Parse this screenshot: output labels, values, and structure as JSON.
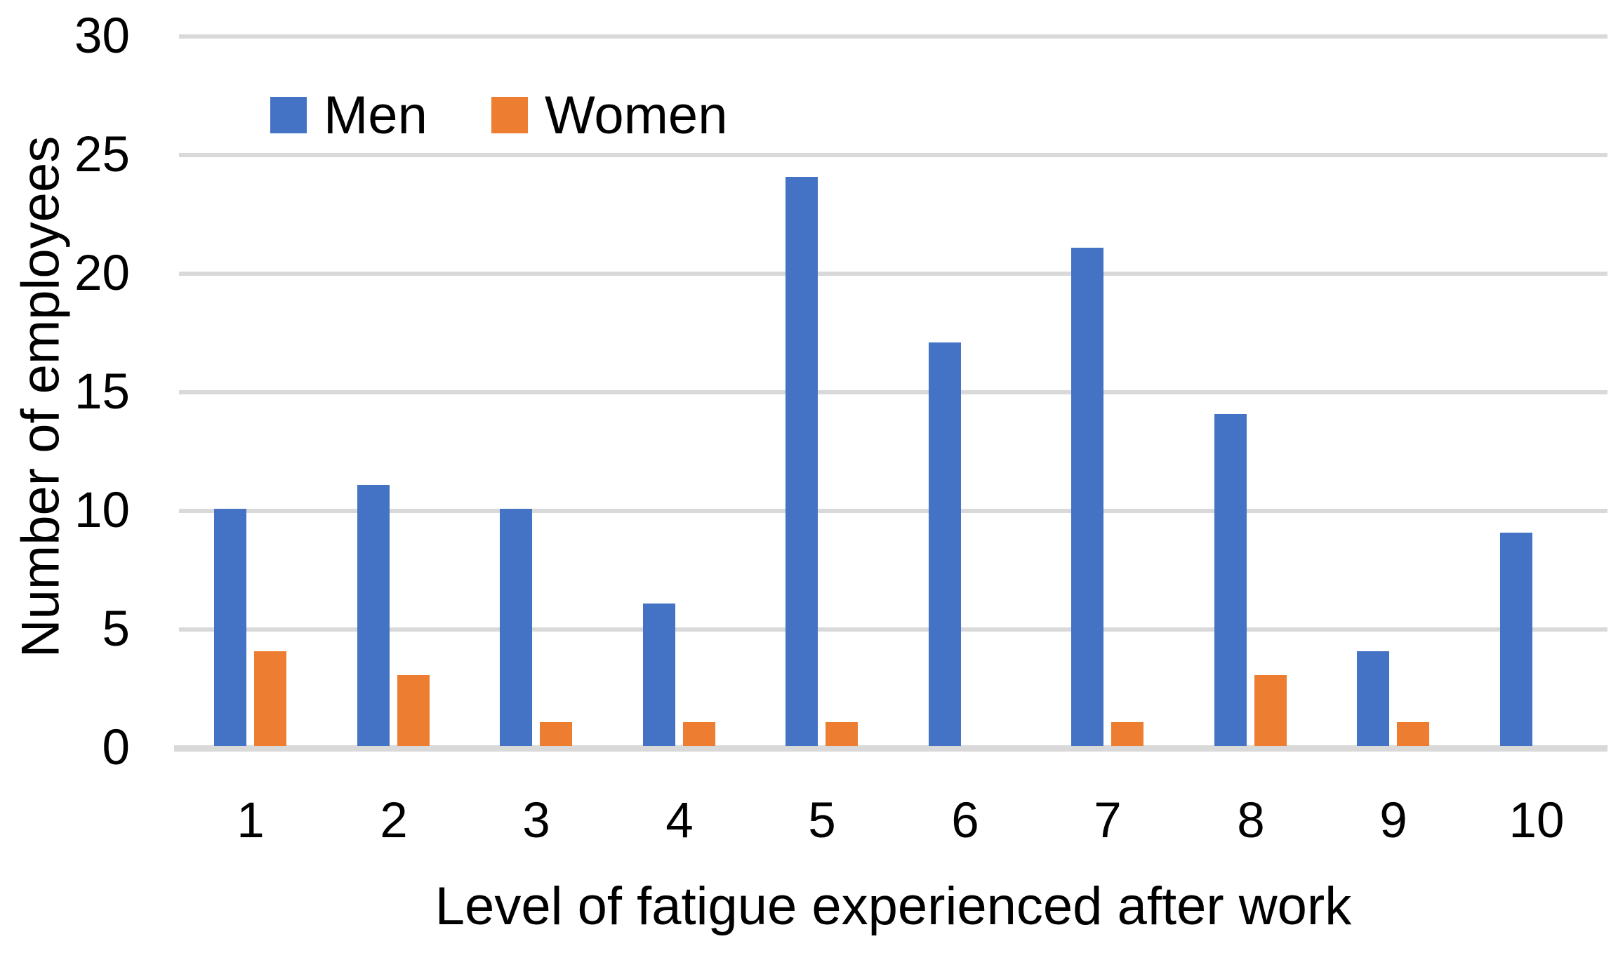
{
  "chart_data": {
    "type": "bar",
    "title": "",
    "categories": [
      "1",
      "2",
      "3",
      "4",
      "5",
      "6",
      "7",
      "8",
      "9",
      "10"
    ],
    "series": [
      {
        "name": "Men",
        "color": "#4472C4",
        "values": [
          10,
          11,
          10,
          6,
          24,
          17,
          21,
          14,
          4,
          9
        ]
      },
      {
        "name": "Women",
        "color": "#ED7D31",
        "values": [
          4,
          3,
          1,
          1,
          1,
          0,
          1,
          3,
          1,
          0
        ]
      }
    ],
    "xlabel": "Level of fatigue experienced after work",
    "ylabel": "Number of employees",
    "ylim": [
      0,
      30
    ],
    "yticks": [
      0,
      5,
      10,
      15,
      20,
      25,
      30
    ],
    "grid": "horizontal",
    "gridline_color": "#D9D9D9",
    "axis_line_color": "#D9D9D9",
    "text_color": "#000000",
    "background_color": "#FFFFFF",
    "legend_position": "top-left-inside"
  }
}
